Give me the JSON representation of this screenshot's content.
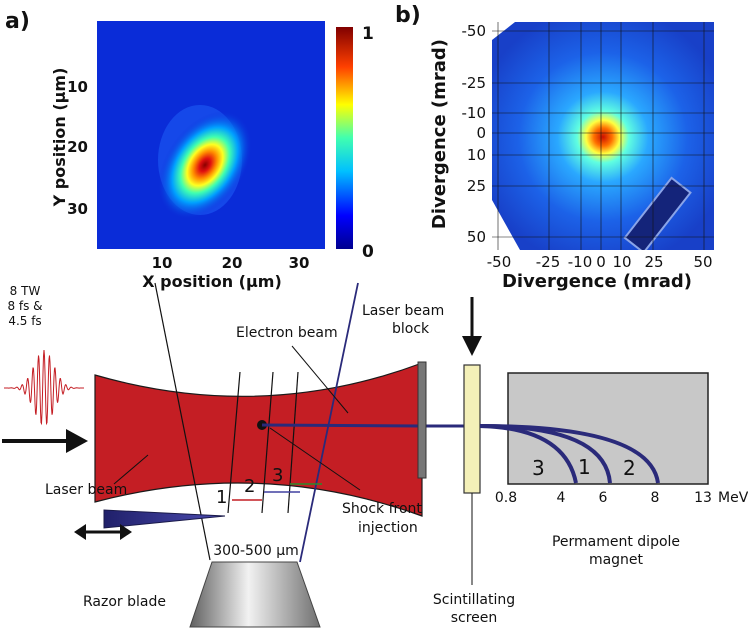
{
  "panel_a": {
    "label": "a)",
    "xlabel": "X position (µm)",
    "ylabel": "Y position (µm)",
    "xticks": [
      "10",
      "20",
      "30"
    ],
    "yticks": [
      "10",
      "20",
      "30"
    ],
    "colorbar": {
      "max": "1",
      "min": "0"
    }
  },
  "panel_b": {
    "label": "b)",
    "xlabel": "Divergence (mrad)",
    "ylabel": "Divergence (mrad)",
    "xticks": [
      "-50",
      "-25",
      "-10",
      "0",
      "10",
      "25",
      "50"
    ],
    "yticks": [
      "-50",
      "-25",
      "-10",
      "0",
      "10",
      "25",
      "50"
    ]
  },
  "diagram": {
    "laser_spec": [
      "8 TW",
      "8 fs &",
      "4.5 fs"
    ],
    "laser_beam": "Laser beam",
    "electron_beam": "Electron beam",
    "beam_block": [
      "Laser beam",
      "block"
    ],
    "shock_front": [
      "Shock front",
      "injection"
    ],
    "razor_blade": "Razor blade",
    "gap": "300-500 μm",
    "positions": [
      "1",
      "2",
      "3"
    ],
    "scintillator": [
      "Scintillating",
      "screen"
    ],
    "magnet": [
      "Permament dipole",
      "magnet"
    ],
    "traces": [
      "3",
      "1",
      "2"
    ],
    "energy_ticks": [
      "0.8",
      "4",
      "6",
      "8",
      "13"
    ],
    "energy_unit": "MeV"
  },
  "colors": {
    "laser": "#c41e24",
    "electron": "#2a2a7a",
    "magnet": "#c8c8c8",
    "screen": "#f4f0b8"
  }
}
